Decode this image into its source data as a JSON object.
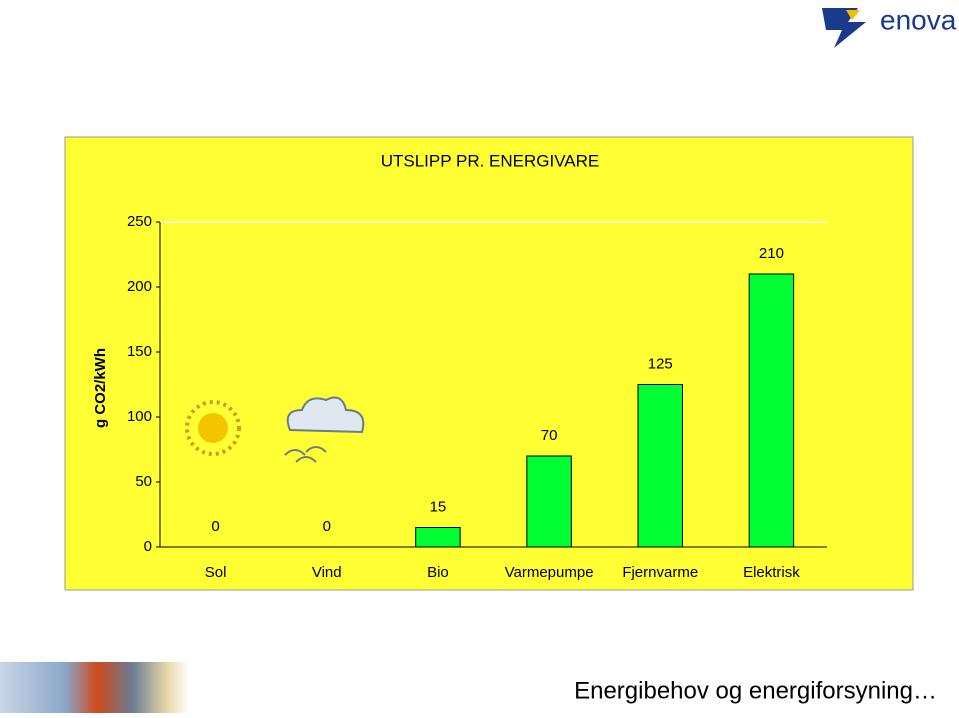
{
  "logo": "enova",
  "footer": "Energibehov og energiforsyning…",
  "chart_data": {
    "type": "bar",
    "title": "UTSLIPP PR. ENERGIVARE",
    "y_label": "g CO2/kWh",
    "categories": [
      "Sol",
      "Vind",
      "Bio",
      "Varmepumpe",
      "Fjernvarme",
      "Elektrisk"
    ],
    "values": [
      0,
      0,
      15,
      70,
      125,
      210
    ],
    "color": "#00ff33",
    "ylim": [
      0,
      250
    ],
    "yticks": [
      0,
      50,
      100,
      150,
      200,
      250
    ],
    "grid": false
  }
}
